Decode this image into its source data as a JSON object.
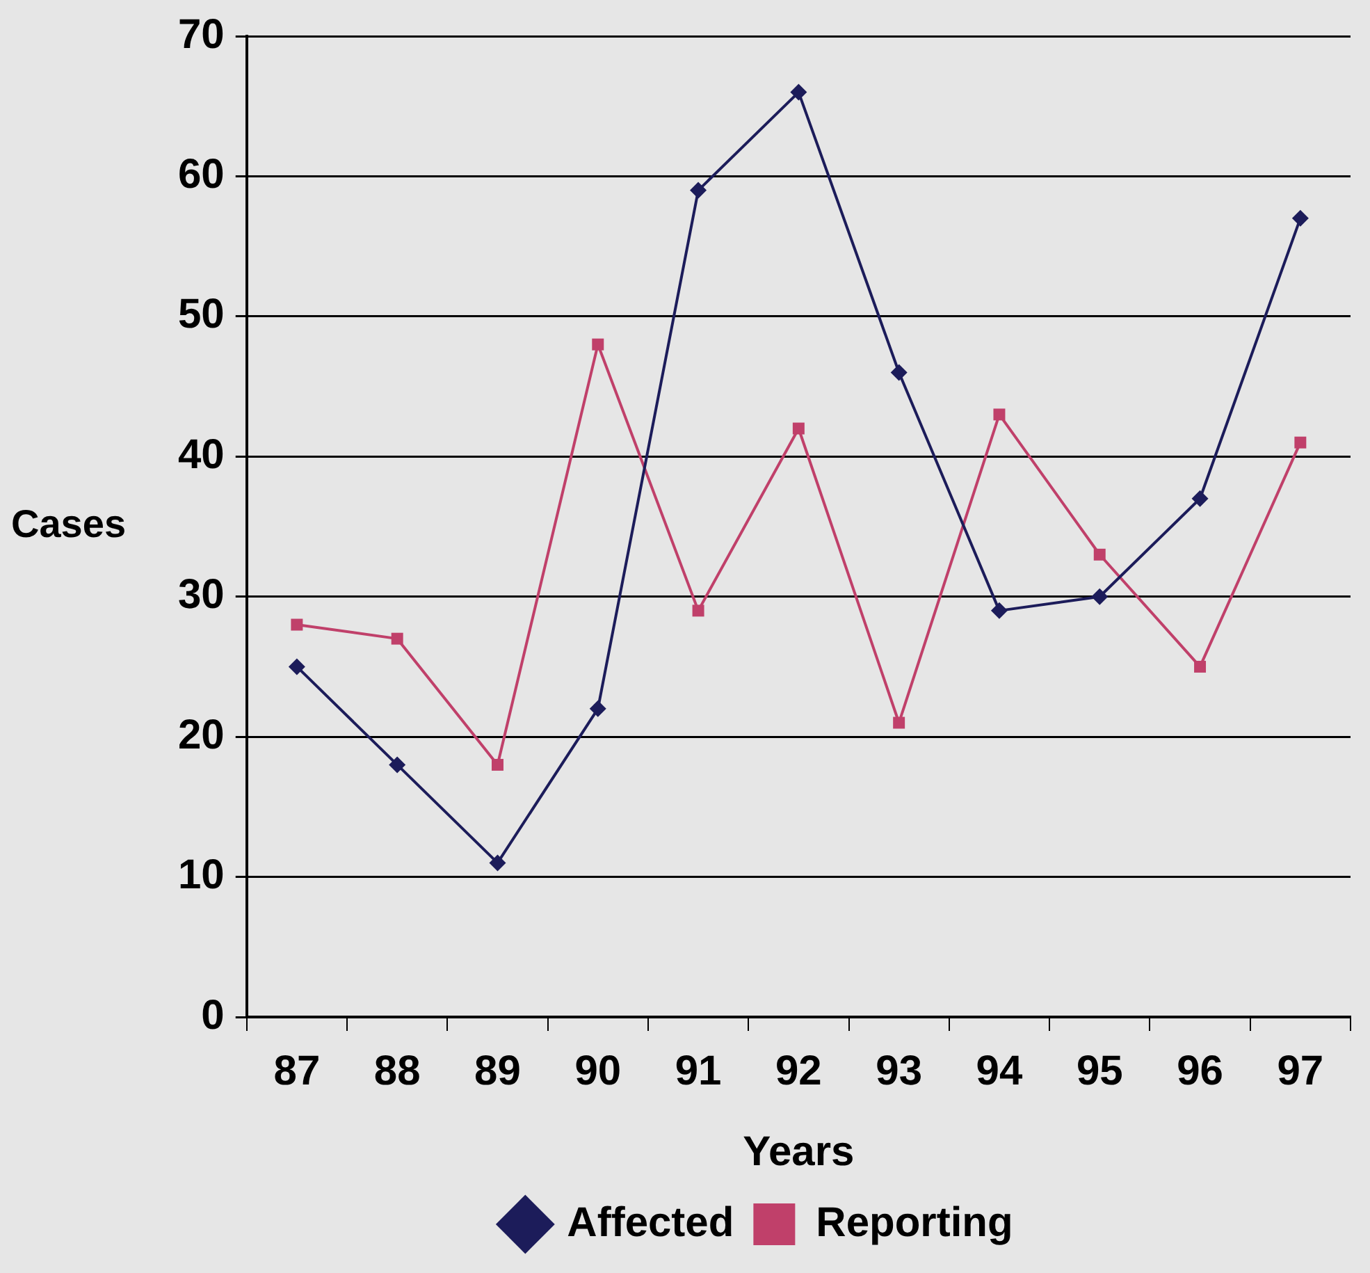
{
  "chart_data": {
    "type": "line",
    "xlabel": "Years",
    "ylabel": "Cases",
    "categories": [
      "87",
      "88",
      "89",
      "90",
      "91",
      "92",
      "93",
      "94",
      "95",
      "96",
      "97"
    ],
    "series": [
      {
        "name": "Affected",
        "color": "#1c1c5a",
        "marker": "diamond",
        "values": [
          25,
          18,
          11,
          22,
          59,
          66,
          46,
          29,
          30,
          37,
          57
        ]
      },
      {
        "name": "Reporting",
        "color": "#c0406a",
        "marker": "square",
        "values": [
          28,
          27,
          18,
          48,
          29,
          42,
          21,
          43,
          33,
          25,
          41
        ]
      }
    ],
    "ylim": [
      0,
      70
    ],
    "yticks": [
      0,
      10,
      20,
      30,
      40,
      50,
      60,
      70
    ],
    "grid": "y",
    "legend": "bottom"
  }
}
